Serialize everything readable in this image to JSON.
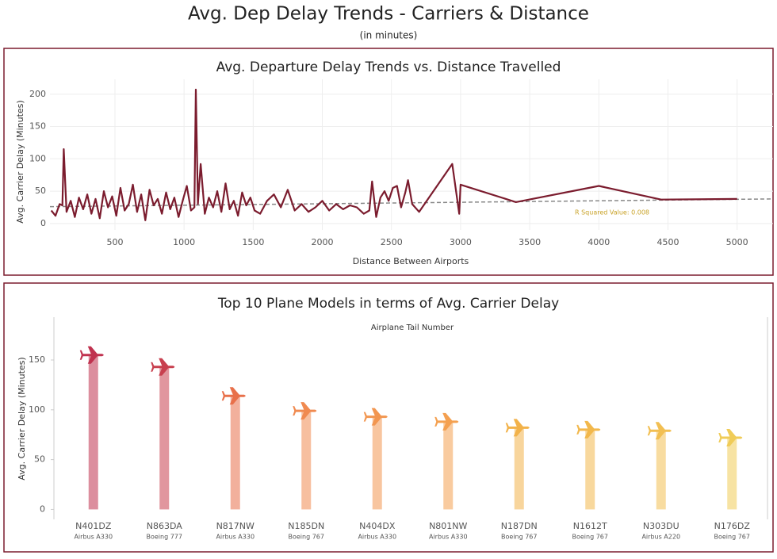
{
  "header": {
    "title": "Avg. Dep Delay Trends - Carriers & Distance",
    "subtitle": "(in minutes)"
  },
  "chart_data": [
    {
      "type": "line",
      "title": "Avg. Departure Delay Trends vs. Distance Travelled",
      "x_label": "Distance Between Airports",
      "y_label": "Avg. Carrier Delay (Minutes)",
      "x": [
        40,
        70,
        100,
        120,
        130,
        150,
        180,
        210,
        240,
        270,
        300,
        330,
        360,
        390,
        420,
        450,
        480,
        510,
        540,
        570,
        600,
        630,
        660,
        690,
        720,
        750,
        780,
        810,
        840,
        870,
        900,
        930,
        960,
        990,
        1020,
        1050,
        1075,
        1085,
        1100,
        1120,
        1150,
        1180,
        1210,
        1240,
        1270,
        1300,
        1330,
        1360,
        1390,
        1420,
        1450,
        1480,
        1510,
        1550,
        1600,
        1650,
        1700,
        1750,
        1800,
        1850,
        1900,
        1950,
        2000,
        2050,
        2100,
        2150,
        2200,
        2250,
        2300,
        2340,
        2360,
        2390,
        2420,
        2450,
        2480,
        2510,
        2540,
        2570,
        2600,
        2620,
        2650,
        2700,
        2940,
        2990,
        3000,
        3400,
        4000,
        4450,
        5000
      ],
      "series": [
        {
          "color": "#7b1c2e",
          "values": [
            20,
            12,
            30,
            28,
            115,
            18,
            35,
            10,
            40,
            22,
            45,
            15,
            38,
            8,
            50,
            25,
            42,
            12,
            55,
            20,
            30,
            60,
            18,
            45,
            5,
            52,
            28,
            38,
            15,
            48,
            22,
            40,
            10,
            35,
            58,
            20,
            25,
            207,
            30,
            92,
            15,
            40,
            25,
            50,
            18,
            62,
            22,
            35,
            12,
            48,
            28,
            40,
            20,
            15,
            35,
            45,
            25,
            52,
            20,
            30,
            18,
            25,
            35,
            20,
            30,
            22,
            28,
            25,
            15,
            20,
            65,
            10,
            40,
            50,
            35,
            55,
            58,
            25,
            48,
            67,
            30,
            18,
            92,
            15,
            60,
            33,
            58,
            37,
            38
          ]
        }
      ],
      "trendline": {
        "x": [
          30,
          5260
        ],
        "values": [
          26,
          38
        ],
        "color": "#888888"
      },
      "annotation": "R Squared Value: 0.008",
      "xlim": [
        30,
        5260
      ],
      "ylim": [
        -10,
        223
      ],
      "xticks": [
        500,
        1000,
        1500,
        2000,
        2500,
        3000,
        3500,
        4000,
        4500,
        5000
      ],
      "yticks": [
        0,
        50,
        100,
        150,
        200
      ],
      "grid": true
    },
    {
      "type": "bar",
      "title": "Top 10 Plane Models in terms of Avg. Carrier Delay",
      "x_label": "Airplane Tail Number",
      "y_label": "Avg. Carrier Delay (Minutes)",
      "categories": [
        "N401DZ",
        "N863DA",
        "N817NW",
        "N185DN",
        "N404DX",
        "N801NW",
        "N187DN",
        "N1612T",
        "N303DU",
        "N176DZ"
      ],
      "subcategories": [
        "Airbus A330",
        "Boeing 777",
        "Airbus A330",
        "Boeing 767",
        "Airbus A330",
        "Airbus A330",
        "Boeing 767",
        "Boeing 767",
        "Airbus A220",
        "Boeing 767"
      ],
      "values": [
        155,
        143,
        114,
        99,
        93,
        88,
        82,
        80,
        79,
        72
      ],
      "colors": [
        "#c0324f",
        "#c8404f",
        "#e8704a",
        "#f08a50",
        "#f29650",
        "#f4a050",
        "#f2b24a",
        "#f2b84c",
        "#f2bf52",
        "#f0cc58"
      ],
      "ylim": [
        -10,
        189
      ],
      "yticks": [
        0,
        50,
        100,
        150
      ]
    }
  ]
}
